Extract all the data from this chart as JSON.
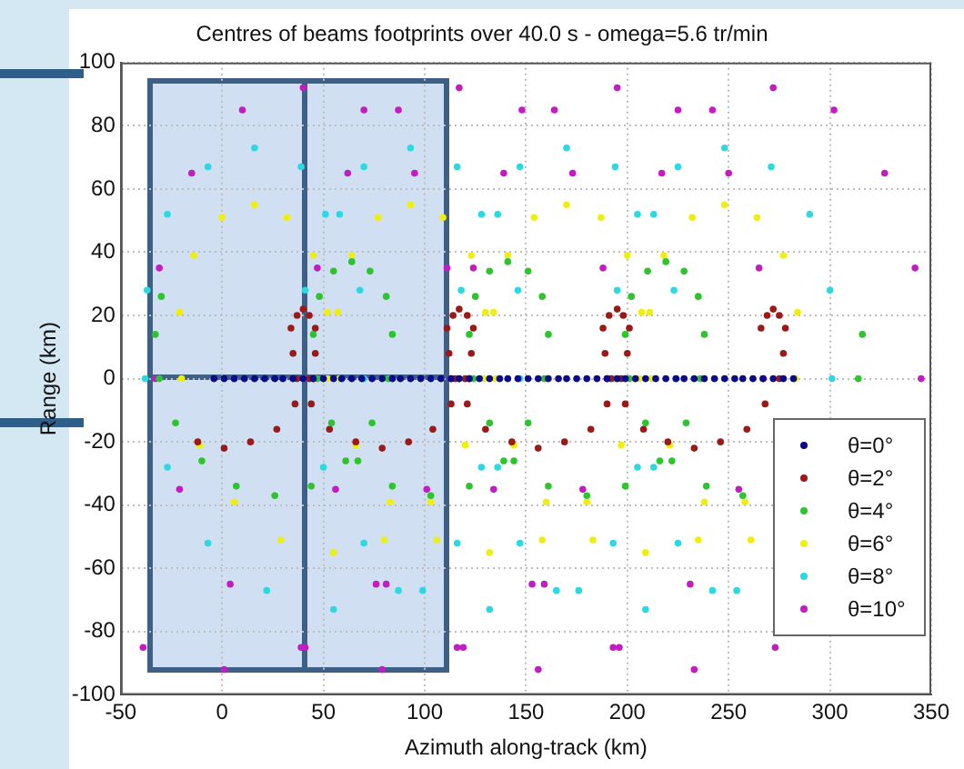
{
  "chart_data": {
    "type": "scatter",
    "title": "Centres of beams footprints over 40.0 s - omega=5.6 tr/min",
    "xlabel": "Azimuth along-track (km)",
    "ylabel": "Range (km)",
    "xlim": [
      -50,
      350
    ],
    "ylim": [
      -100,
      100
    ],
    "xticks": [
      -50,
      0,
      50,
      100,
      150,
      200,
      250,
      300,
      350
    ],
    "yticks": [
      -100,
      -80,
      -60,
      -40,
      -20,
      0,
      20,
      40,
      60,
      80,
      100
    ],
    "grid": true,
    "legend": "bottom right",
    "marker": "circle",
    "series": [
      {
        "name": "θ=0°",
        "color": "#0a0a8c",
        "x": [
          -4,
          1,
          6,
          11,
          16,
          21,
          26,
          30,
          35,
          40,
          45,
          50,
          55,
          59,
          64,
          69,
          74,
          79,
          84,
          88,
          93,
          98,
          103,
          108,
          113,
          117,
          122,
          127,
          132,
          137,
          141,
          146,
          151,
          156,
          161,
          166,
          170,
          175,
          180,
          185,
          190,
          195,
          199,
          204,
          209,
          214,
          219,
          224,
          228,
          233,
          238,
          243,
          248,
          253,
          257,
          262,
          267,
          272,
          277,
          282
        ],
        "values": [
          0,
          0,
          0,
          0,
          0,
          0,
          0,
          0,
          0,
          0,
          0,
          0,
          0,
          0,
          0,
          0,
          0,
          0,
          0,
          0,
          0,
          0,
          0,
          0,
          0,
          0,
          0,
          0,
          0,
          0,
          0,
          0,
          0,
          0,
          0,
          0,
          0,
          0,
          0,
          0,
          0,
          0,
          0,
          0,
          0,
          0,
          0,
          0,
          0,
          0,
          0,
          0,
          0,
          0,
          0,
          0,
          0,
          0,
          0,
          0
        ]
      },
      {
        "name": "θ=2°",
        "color": "#9a1a1a",
        "x": [
          -12,
          1,
          14,
          27,
          36,
          43,
          46,
          46,
          43,
          40,
          37,
          34,
          35,
          37,
          44,
          53,
          66,
          79,
          92,
          104,
          113,
          120,
          123,
          124,
          121,
          117,
          114,
          111,
          112,
          115,
          121,
          130,
          143,
          156,
          169,
          182,
          190,
          197,
          200,
          201,
          198,
          195,
          191,
          188,
          189,
          192,
          199,
          208,
          220,
          233,
          246,
          259,
          268,
          275,
          277,
          278,
          275,
          272,
          269,
          266
        ],
        "values": [
          -20,
          -22,
          -20,
          -16,
          -8,
          0,
          8,
          16,
          20,
          22,
          20,
          16,
          8,
          0,
          -8,
          -16,
          -20,
          -22,
          -20,
          -16,
          -8,
          0,
          8,
          16,
          20,
          22,
          20,
          16,
          8,
          0,
          -8,
          -16,
          -20,
          -22,
          -20,
          -16,
          -8,
          0,
          8,
          16,
          20,
          22,
          20,
          16,
          8,
          0,
          -8,
          -16,
          -20,
          -22,
          -20,
          -16,
          -8,
          0,
          8,
          16,
          20,
          22,
          20,
          16
        ]
      },
      {
        "name": "θ=4°",
        "color": "#2ec42e",
        "x": [
          -30,
          -33,
          -31,
          -23,
          -10,
          7,
          26,
          44,
          61,
          74,
          82,
          84,
          81,
          73,
          64,
          55,
          48,
          45,
          47,
          54,
          67,
          84,
          103,
          122,
          139,
          151,
          159,
          161,
          158,
          151,
          141,
          132,
          125,
          122,
          124,
          132,
          144,
          161,
          180,
          199,
          216,
          229,
          236,
          238,
          235,
          228,
          219,
          210,
          202,
          199,
          201,
          209,
          222,
          239,
          257,
          276,
          293,
          306,
          314,
          316
        ],
        "values": [
          26,
          14,
          0,
          -14,
          -26,
          -34,
          -37,
          -34,
          -26,
          -14,
          0,
          14,
          26,
          34,
          37,
          34,
          26,
          14,
          0,
          -14,
          -26,
          -34,
          -37,
          -34,
          -26,
          -14,
          0,
          14,
          26,
          34,
          37,
          34,
          26,
          14,
          0,
          -14,
          -26,
          -34,
          -37,
          -34,
          -26,
          -14,
          0,
          14,
          26,
          34,
          37,
          34,
          26,
          14,
          0,
          -14,
          -26,
          -34,
          -37,
          null,
          null,
          null,
          0,
          14
        ]
      },
      {
        "name": "θ=6°",
        "color": "#eeee10",
        "x": [
          52,
          52,
          45,
          32,
          16,
          0,
          -14,
          -21,
          -20,
          -11,
          6,
          29,
          55,
          80,
          103,
          120,
          129,
          130,
          123,
          109,
          93,
          77,
          64,
          57,
          58,
          66,
          83,
          106,
          132,
          158,
          180,
          197,
          206,
          207,
          200,
          187,
          170,
          154,
          141,
          134,
          135,
          144,
          160,
          183,
          209,
          235,
          258,
          275,
          283,
          284,
          277,
          264,
          248,
          232,
          218,
          211,
          212,
          221,
          238,
          261
        ],
        "values": [
          0,
          21,
          39,
          51,
          55,
          51,
          39,
          21,
          0,
          -21,
          -39,
          -51,
          -55,
          -51,
          -39,
          -21,
          0,
          21,
          39,
          51,
          55,
          51,
          39,
          21,
          0,
          -21,
          -39,
          -51,
          -55,
          -51,
          -39,
          -21,
          0,
          21,
          39,
          51,
          55,
          51,
          39,
          21,
          0,
          -21,
          -39,
          -51,
          -55,
          -51,
          -39,
          null,
          0,
          21,
          39,
          51,
          55,
          51,
          39,
          21,
          0,
          -21,
          -39,
          -51
        ]
      },
      {
        "name": "θ=8°",
        "color": "#2ed8e0",
        "x": [
          70,
          68,
          58,
          39,
          16,
          -7,
          -27,
          -37,
          -38,
          -27,
          -7,
          22,
          55,
          87,
          116,
          136,
          147,
          146,
          136,
          116,
          93,
          70,
          51,
          41,
          40,
          50,
          70,
          99,
          132,
          165,
          193,
          213,
          224,
          223,
          213,
          194,
          170,
          147,
          128,
          118,
          117,
          128,
          147,
          176,
          209,
          242,
          271,
          291,
          301,
          300,
          290,
          271,
          248,
          225,
          205,
          195,
          194,
          205,
          225,
          254
        ],
        "values": [
          0,
          28,
          52,
          67,
          73,
          67,
          52,
          28,
          0,
          -28,
          -52,
          -67,
          -73,
          -67,
          -52,
          -28,
          0,
          28,
          52,
          67,
          73,
          67,
          52,
          28,
          0,
          -28,
          -52,
          -67,
          -73,
          -67,
          -52,
          -28,
          0,
          28,
          52,
          67,
          73,
          67,
          52,
          28,
          0,
          -28,
          -52,
          -67,
          -73,
          -67,
          null,
          null,
          0,
          28,
          52,
          67,
          73,
          67,
          52,
          28,
          0,
          -28,
          -52,
          -67
        ]
      },
      {
        "name": "θ=10°",
        "color": "#c21cc2",
        "x": [
          -39,
          1,
          41,
          76,
          101,
          113,
          111,
          95,
          70,
          40,
          10,
          -15,
          -31,
          -33,
          -21,
          4,
          39,
          79,
          119,
          153,
          178,
          190,
          188,
          173,
          148,
          117,
          87,
          62,
          47,
          45,
          56,
          81,
          116,
          156,
          196,
          231,
          255,
          267,
          265,
          250,
          225,
          195,
          164,
          139,
          124,
          122,
          134,
          159,
          193,
          233,
          273,
          308,
          333,
          345,
          342,
          327,
          302,
          272,
          242,
          217
        ],
        "values": [
          -85,
          -92,
          -85,
          -65,
          -35,
          0,
          35,
          65,
          85,
          92,
          85,
          65,
          35,
          0,
          -35,
          -65,
          -85,
          -92,
          -85,
          -65,
          -35,
          0,
          35,
          65,
          85,
          92,
          85,
          65,
          35,
          0,
          -35,
          -65,
          -85,
          -92,
          -85,
          -65,
          -35,
          0,
          35,
          65,
          85,
          92,
          85,
          65,
          35,
          0,
          -35,
          -65,
          -85,
          -92,
          -85,
          null,
          null,
          0,
          35,
          65,
          85,
          92,
          85,
          65
        ]
      }
    ]
  }
}
